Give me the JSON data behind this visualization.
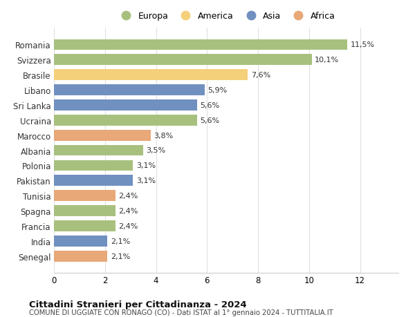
{
  "countries": [
    "Romania",
    "Svizzera",
    "Brasile",
    "Libano",
    "Sri Lanka",
    "Ucraina",
    "Marocco",
    "Albania",
    "Polonia",
    "Pakistan",
    "Tunisia",
    "Spagna",
    "Francia",
    "India",
    "Senegal"
  ],
  "values": [
    11.5,
    10.1,
    7.6,
    5.9,
    5.6,
    5.6,
    3.8,
    3.5,
    3.1,
    3.1,
    2.4,
    2.4,
    2.4,
    2.1,
    2.1
  ],
  "labels": [
    "11,5%",
    "10,1%",
    "7,6%",
    "5,9%",
    "5,6%",
    "5,6%",
    "3,8%",
    "3,5%",
    "3,1%",
    "3,1%",
    "2,4%",
    "2,4%",
    "2,4%",
    "2,1%",
    "2,1%"
  ],
  "continents": [
    "Europa",
    "Europa",
    "America",
    "Asia",
    "Asia",
    "Europa",
    "Africa",
    "Europa",
    "Europa",
    "Asia",
    "Africa",
    "Europa",
    "Europa",
    "Asia",
    "Africa"
  ],
  "colors": {
    "Europa": "#a8c07e",
    "America": "#f5d07a",
    "Asia": "#7090bf",
    "Africa": "#e8a878"
  },
  "xlim": [
    0,
    13.5
  ],
  "xticks": [
    0,
    2,
    4,
    6,
    8,
    10,
    12
  ],
  "title": "Cittadini Stranieri per Cittadinanza - 2024",
  "subtitle": "COMUNE DI UGGIATE CON RONAGO (CO) - Dati ISTAT al 1° gennaio 2024 - TUTTITALIA.IT",
  "background_color": "#ffffff",
  "grid_color": "#e0e0e0",
  "legend_order": [
    "Europa",
    "America",
    "Asia",
    "Africa"
  ]
}
